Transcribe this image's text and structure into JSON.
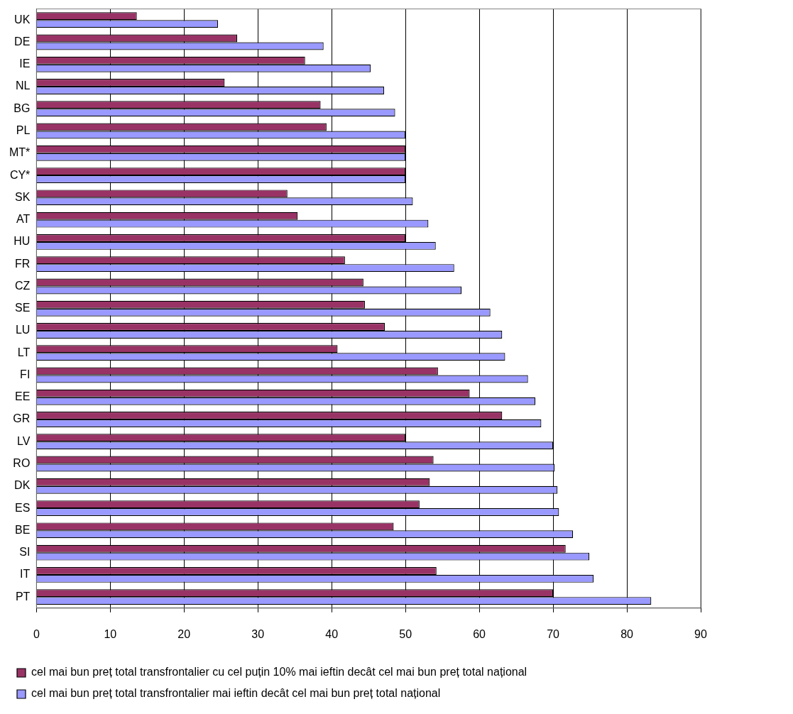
{
  "chart_data": {
    "type": "bar",
    "orientation": "horizontal",
    "categories": [
      "UK",
      "DE",
      "IE",
      "NL",
      "BG",
      "PL",
      "MT*",
      "CY*",
      "SK",
      "AT",
      "HU",
      "FR",
      "CZ",
      "SE",
      "LU",
      "LT",
      "FI",
      "EE",
      "GR",
      "LV",
      "RO",
      "DK",
      "ES",
      "BE",
      "SI",
      "IT",
      "PT"
    ],
    "series": [
      {
        "name": "cel mai bun preț total transfrontalier cu cel puțin 10% mai ieftin decât cel mai bun preț total național",
        "color": "#993366",
        "values": [
          13.6,
          27.2,
          36.4,
          25.5,
          38.5,
          39.3,
          50,
          50,
          34,
          35.4,
          50,
          41.8,
          44.3,
          44.5,
          47.2,
          40.8,
          54.4,
          58.7,
          63.1,
          50,
          53.8,
          53.3,
          51.9,
          48.4,
          71.7,
          54.2,
          70
        ]
      },
      {
        "name": "cel mai bun preț total transfrontalier mai ieftin decât cel mai bun preț total național",
        "color": "#9999ff",
        "values": [
          24.6,
          38.9,
          45.3,
          47.1,
          48.6,
          50,
          50,
          50,
          51,
          53.1,
          54.1,
          56.6,
          57.6,
          61.5,
          63.1,
          63.5,
          66.6,
          67.6,
          68.4,
          70,
          70.2,
          70.6,
          70.8,
          72.7,
          74.9,
          75.5,
          83.3
        ]
      }
    ],
    "xlim": [
      0,
      90
    ],
    "xticks": [
      0,
      10,
      20,
      30,
      40,
      50,
      60,
      70,
      80,
      90
    ],
    "grid": "x",
    "legend": "bottom"
  }
}
